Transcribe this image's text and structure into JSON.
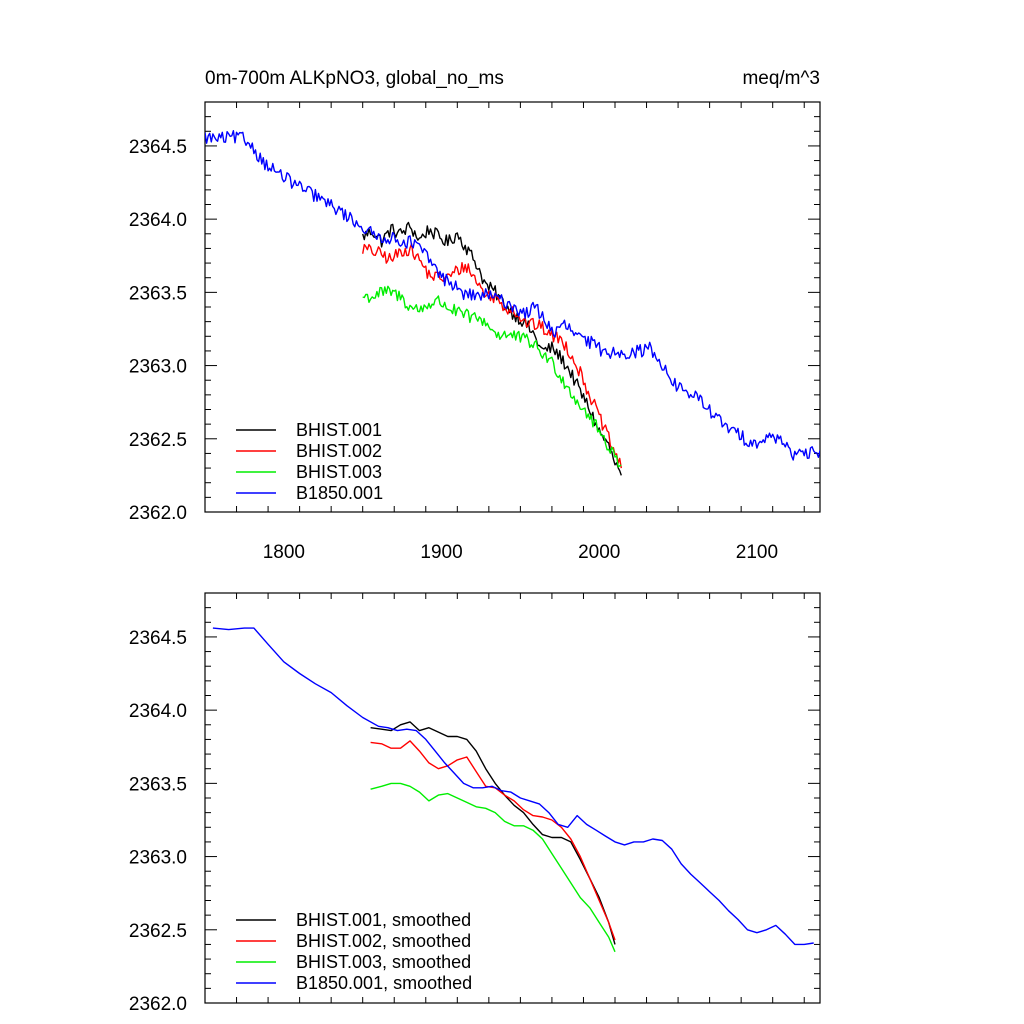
{
  "chart_data": [
    {
      "type": "line",
      "title": "0m-700m ALKpNO3, global_no_ms",
      "units": "meq/m^3",
      "xlim": [
        1750,
        2140
      ],
      "ylim": [
        2362.0,
        2364.8
      ],
      "xticks": [
        1800,
        1900,
        2000,
        2100
      ],
      "xtick_labels": [
        "1800",
        "1900",
        "2000",
        "2100"
      ],
      "yticks": [
        2362.0,
        2362.5,
        2363.0,
        2363.5,
        2364.0,
        2364.5
      ],
      "ytick_labels": [
        "2362.0",
        "2362.5",
        "2363.0",
        "2363.5",
        "2364.0",
        "2364.5"
      ],
      "grid": false,
      "legend_position": "bottom-left",
      "noise": true,
      "series": [
        {
          "name": "BHIST.001",
          "color": "#000000",
          "x": [
            1850,
            1856,
            1862,
            1868,
            1874,
            1880,
            1886,
            1892,
            1898,
            1904,
            1910,
            1916,
            1922,
            1928,
            1934,
            1940,
            1946,
            1952,
            1958,
            1964,
            1970,
            1976,
            1982,
            1988,
            1994,
            2000,
            2006,
            2010,
            2014
          ],
          "y": [
            2363.88,
            2363.92,
            2363.85,
            2363.93,
            2363.9,
            2363.95,
            2363.86,
            2363.93,
            2363.88,
            2363.84,
            2363.9,
            2363.8,
            2363.7,
            2363.55,
            2363.5,
            2363.42,
            2363.35,
            2363.3,
            2363.22,
            2363.1,
            2363.12,
            2363.05,
            2362.95,
            2362.82,
            2362.7,
            2362.55,
            2362.45,
            2362.33,
            2362.25
          ]
        },
        {
          "name": "BHIST.002",
          "color": "#ff0000",
          "x": [
            1850,
            1856,
            1862,
            1868,
            1874,
            1880,
            1886,
            1892,
            1898,
            1904,
            1910,
            1916,
            1922,
            1928,
            1934,
            1940,
            1946,
            1952,
            1958,
            1964,
            1970,
            1976,
            1982,
            1988,
            1994,
            2000,
            2006,
            2010,
            2014
          ],
          "y": [
            2363.8,
            2363.78,
            2363.76,
            2363.72,
            2363.78,
            2363.8,
            2363.72,
            2363.62,
            2363.6,
            2363.6,
            2363.65,
            2363.68,
            2363.58,
            2363.48,
            2363.47,
            2363.4,
            2363.38,
            2363.3,
            2363.28,
            2363.26,
            2363.2,
            2363.18,
            2363.08,
            2362.95,
            2362.8,
            2362.65,
            2362.5,
            2362.4,
            2362.3
          ]
        },
        {
          "name": "BHIST.003",
          "color": "#00ee00",
          "x": [
            1850,
            1856,
            1862,
            1868,
            1874,
            1880,
            1886,
            1892,
            1898,
            1904,
            1910,
            1916,
            1922,
            1928,
            1934,
            1940,
            1946,
            1952,
            1958,
            1964,
            1970,
            1976,
            1982,
            1988,
            1994,
            2000,
            2006,
            2010,
            2014
          ],
          "y": [
            2363.47,
            2363.47,
            2363.5,
            2363.5,
            2363.47,
            2363.4,
            2363.38,
            2363.42,
            2363.44,
            2363.4,
            2363.36,
            2363.34,
            2363.32,
            2363.3,
            2363.22,
            2363.21,
            2363.2,
            2363.18,
            2363.15,
            2363.08,
            2363.02,
            2362.92,
            2362.82,
            2362.73,
            2362.65,
            2362.55,
            2362.45,
            2362.38,
            2362.32
          ]
        },
        {
          "name": "B1850.001",
          "color": "#0000ff",
          "x": [
            1750,
            1756,
            1762,
            1768,
            1774,
            1780,
            1786,
            1792,
            1798,
            1804,
            1810,
            1816,
            1822,
            1828,
            1834,
            1840,
            1846,
            1852,
            1858,
            1864,
            1870,
            1876,
            1882,
            1888,
            1894,
            1900,
            1906,
            1912,
            1918,
            1924,
            1930,
            1936,
            1942,
            1948,
            1954,
            1960,
            1966,
            1972,
            1978,
            1984,
            1990,
            1996,
            2002,
            2008,
            2014,
            2020,
            2026,
            2032,
            2038,
            2044,
            2050,
            2056,
            2062,
            2068,
            2074,
            2080,
            2086,
            2092,
            2098,
            2104,
            2110,
            2116,
            2122,
            2128,
            2134,
            2140
          ],
          "y": [
            2364.56,
            2364.55,
            2364.55,
            2364.56,
            2364.55,
            2364.5,
            2364.4,
            2364.35,
            2364.3,
            2364.26,
            2364.22,
            2364.18,
            2364.15,
            2364.1,
            2364.07,
            2364.02,
            2363.98,
            2363.93,
            2363.88,
            2363.88,
            2363.86,
            2363.85,
            2363.84,
            2363.78,
            2363.7,
            2363.6,
            2363.57,
            2363.5,
            2363.48,
            2363.48,
            2363.48,
            2363.45,
            2363.43,
            2363.38,
            2363.36,
            2363.4,
            2363.3,
            2363.22,
            2363.28,
            2363.22,
            2363.17,
            2363.15,
            2363.1,
            2363.09,
            2363.1,
            2363.08,
            2363.1,
            2363.12,
            2363.05,
            2362.92,
            2362.85,
            2362.82,
            2362.78,
            2362.72,
            2362.65,
            2362.58,
            2362.55,
            2362.5,
            2362.48,
            2362.48,
            2362.52,
            2362.5,
            2362.4,
            2362.38,
            2362.4,
            2362.42
          ]
        }
      ]
    },
    {
      "type": "line",
      "title": "",
      "xlim": [
        1750,
        2140
      ],
      "ylim": [
        2362.0,
        2364.8
      ],
      "xticks": [
        1800,
        1900,
        2000,
        2100
      ],
      "xtick_labels": [
        "",
        "",
        "",
        ""
      ],
      "yticks": [
        2362.0,
        2362.5,
        2363.0,
        2363.5,
        2364.0,
        2364.5
      ],
      "ytick_labels": [
        "2362.0",
        "2362.5",
        "2363.0",
        "2363.5",
        "2364.0",
        "2364.5"
      ],
      "grid": false,
      "legend_position": "bottom-left",
      "noise": false,
      "series": [
        {
          "name": "BHIST.001, smoothed",
          "color": "#000000",
          "x": [
            1855,
            1862,
            1868,
            1874,
            1880,
            1886,
            1892,
            1898,
            1904,
            1910,
            1916,
            1922,
            1928,
            1934,
            1940,
            1946,
            1952,
            1958,
            1964,
            1970,
            1976,
            1982,
            1988,
            1994,
            2000,
            2006,
            2010
          ],
          "y": [
            2363.88,
            2363.87,
            2363.86,
            2363.9,
            2363.92,
            2363.86,
            2363.88,
            2363.85,
            2363.82,
            2363.82,
            2363.8,
            2363.72,
            2363.6,
            2363.5,
            2363.42,
            2363.35,
            2363.3,
            2363.22,
            2363.15,
            2363.13,
            2363.13,
            2363.1,
            2362.98,
            2362.85,
            2362.72,
            2362.55,
            2362.4
          ]
        },
        {
          "name": "BHIST.002, smoothed",
          "color": "#ff0000",
          "x": [
            1855,
            1862,
            1868,
            1874,
            1880,
            1886,
            1892,
            1898,
            1904,
            1910,
            1916,
            1922,
            1928,
            1934,
            1940,
            1946,
            1952,
            1958,
            1964,
            1970,
            1976,
            1982,
            1988,
            1994,
            2000,
            2006,
            2010
          ],
          "y": [
            2363.78,
            2363.77,
            2363.74,
            2363.74,
            2363.79,
            2363.72,
            2363.64,
            2363.6,
            2363.62,
            2363.66,
            2363.68,
            2363.58,
            2363.48,
            2363.47,
            2363.42,
            2363.38,
            2363.32,
            2363.28,
            2363.27,
            2363.25,
            2363.2,
            2363.12,
            2363.0,
            2362.85,
            2362.7,
            2362.55,
            2362.43
          ]
        },
        {
          "name": "BHIST.003, smoothed",
          "color": "#00ee00",
          "x": [
            1855,
            1862,
            1868,
            1874,
            1880,
            1886,
            1892,
            1898,
            1904,
            1910,
            1916,
            1922,
            1928,
            1934,
            1940,
            1946,
            1952,
            1958,
            1964,
            1970,
            1976,
            1982,
            1988,
            1994,
            2000,
            2006,
            2010
          ],
          "y": [
            2363.46,
            2363.48,
            2363.5,
            2363.5,
            2363.48,
            2363.44,
            2363.38,
            2363.42,
            2363.43,
            2363.4,
            2363.37,
            2363.34,
            2363.33,
            2363.3,
            2363.24,
            2363.21,
            2363.21,
            2363.18,
            2363.12,
            2363.02,
            2362.92,
            2362.82,
            2362.72,
            2362.65,
            2362.55,
            2362.45,
            2362.35
          ]
        },
        {
          "name": "B1850.001, smoothed",
          "color": "#0000ff",
          "x": [
            1755,
            1765,
            1775,
            1781,
            1790,
            1800,
            1810,
            1820,
            1830,
            1840,
            1850,
            1860,
            1866,
            1872,
            1878,
            1884,
            1890,
            1896,
            1902,
            1908,
            1914,
            1920,
            1926,
            1932,
            1938,
            1944,
            1950,
            1956,
            1962,
            1968,
            1974,
            1980,
            1986,
            1992,
            1998,
            2004,
            2010,
            2016,
            2022,
            2028,
            2034,
            2040,
            2046,
            2052,
            2058,
            2064,
            2070,
            2076,
            2082,
            2088,
            2094,
            2100,
            2106,
            2112,
            2118,
            2124,
            2130,
            2136
          ],
          "y": [
            2364.56,
            2364.55,
            2364.56,
            2364.56,
            2364.45,
            2364.33,
            2364.25,
            2364.18,
            2364.12,
            2364.03,
            2363.95,
            2363.89,
            2363.88,
            2363.86,
            2363.87,
            2363.86,
            2363.8,
            2363.72,
            2363.64,
            2363.57,
            2363.5,
            2363.47,
            2363.47,
            2363.48,
            2363.45,
            2363.44,
            2363.4,
            2363.38,
            2363.36,
            2363.3,
            2363.22,
            2363.2,
            2363.28,
            2363.22,
            2363.18,
            2363.14,
            2363.1,
            2363.08,
            2363.1,
            2363.1,
            2363.12,
            2363.11,
            2363.05,
            2362.95,
            2362.88,
            2362.82,
            2362.76,
            2362.7,
            2362.63,
            2362.57,
            2362.5,
            2362.48,
            2362.5,
            2362.53,
            2362.47,
            2362.4,
            2362.4,
            2362.41
          ]
        }
      ]
    }
  ]
}
